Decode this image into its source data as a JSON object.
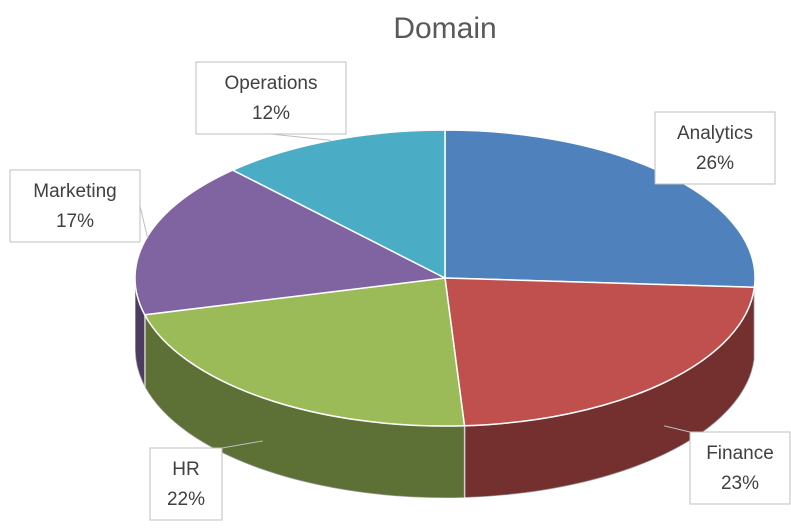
{
  "chart_data": {
    "type": "pie3d",
    "title": "Domain",
    "categories": [
      "Analytics",
      "Finance",
      "HR",
      "Marketing",
      "Operations"
    ],
    "values": [
      26,
      23,
      22,
      17,
      12
    ],
    "value_labels": [
      "26%",
      "23%",
      "22%",
      "17%",
      "12%"
    ],
    "colors": [
      "#4f81bd",
      "#c0504d",
      "#9bbb59",
      "#8064a2",
      "#4bacc6"
    ]
  }
}
